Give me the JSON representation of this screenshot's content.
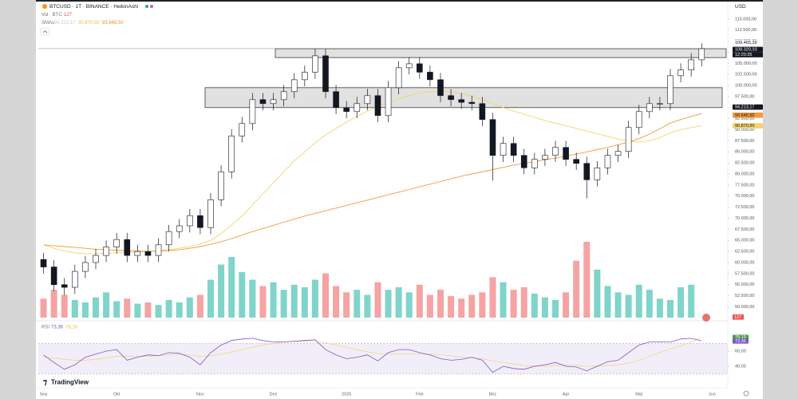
{
  "chart_data": {
    "type": "candlestick",
    "title": "BTCUSD · 1T · BINANCE · HeikinAshi",
    "currency": "USD",
    "volume_label": "Vol · BTC",
    "sma_label": "SMAs",
    "rsi_label": "RSI",
    "brand": "TradingView",
    "up_color": "#ffffff",
    "down_color": "#131722",
    "volume_up_color": "#80d4c9",
    "volume_down_color": "#f5a3a3",
    "categories": [
      "Sep",
      null,
      null,
      null,
      null,
      null,
      null,
      "Okt",
      null,
      null,
      null,
      null,
      null,
      null,
      null,
      "Nov",
      null,
      null,
      null,
      null,
      null,
      null,
      "Dez",
      null,
      null,
      null,
      null,
      null,
      null,
      "2025",
      null,
      null,
      null,
      null,
      null,
      null,
      "Feb",
      null,
      null,
      null,
      null,
      null,
      null,
      "Mrz",
      null,
      null,
      null,
      null,
      null,
      null,
      "Apr",
      null,
      null,
      null,
      null,
      null,
      null,
      "Mai",
      null,
      null,
      null,
      null,
      null,
      null,
      "Jun",
      null
    ],
    "open": [
      60700,
      59000,
      55000,
      54400,
      58000,
      60000,
      61600,
      63500,
      65200,
      61600,
      62500,
      61600,
      64000,
      67000,
      68300,
      70600,
      67900,
      74200,
      80500,
      88600,
      91400,
      96800,
      95900,
      96800,
      98600,
      101300,
      103000,
      106700,
      98600,
      95000,
      94100,
      95900,
      97700,
      93200,
      99500,
      104000,
      104900,
      103000,
      101300,
      97700,
      96800,
      96200,
      95900,
      92300,
      84200,
      86900,
      84200,
      81400,
      83300,
      84200,
      86000,
      83300,
      82400,
      78700,
      81400,
      84200,
      85100,
      90500,
      94100,
      95900,
      95900,
      102200,
      103500,
      105800,
      null,
      null
    ],
    "high": [
      62200,
      60500,
      56500,
      59500,
      61500,
      63100,
      65000,
      66700,
      66700,
      64000,
      64000,
      65500,
      68500,
      69800,
      72100,
      72100,
      75700,
      82000,
      90100,
      92900,
      98300,
      98300,
      98300,
      100100,
      102800,
      104500,
      108300,
      108200,
      100100,
      96500,
      97400,
      99200,
      99200,
      101000,
      105500,
      106400,
      106400,
      104500,
      102800,
      99200,
      98300,
      97700,
      97400,
      93800,
      88400,
      88400,
      85700,
      84800,
      85700,
      87500,
      87500,
      84800,
      83900,
      82900,
      85700,
      86600,
      92000,
      95600,
      97400,
      97400,
      103700,
      105000,
      107300,
      109500,
      null,
      null
    ],
    "low": [
      57500,
      53500,
      52600,
      52900,
      56500,
      58500,
      60100,
      62000,
      60100,
      60100,
      60100,
      60100,
      62500,
      65500,
      66800,
      66400,
      66400,
      72700,
      79000,
      87100,
      89900,
      94400,
      94400,
      95300,
      97100,
      99800,
      101500,
      97100,
      93500,
      92600,
      92600,
      94400,
      91700,
      91700,
      98000,
      102500,
      101500,
      99800,
      96200,
      95300,
      94700,
      94400,
      90800,
      78500,
      82700,
      82700,
      79900,
      79900,
      81800,
      82700,
      81800,
      80900,
      74500,
      77200,
      79900,
      82700,
      83600,
      89000,
      92600,
      94400,
      94400,
      100700,
      102000,
      104300,
      null,
      null
    ],
    "close": [
      59000,
      55000,
      54400,
      58000,
      60000,
      61600,
      63500,
      65200,
      61600,
      62500,
      61600,
      64000,
      67000,
      68300,
      70600,
      67900,
      74200,
      80500,
      88600,
      91400,
      96800,
      95900,
      96800,
      98600,
      101300,
      103000,
      106700,
      98600,
      95000,
      94100,
      95900,
      97700,
      93200,
      99500,
      104000,
      104900,
      103000,
      101300,
      97700,
      96800,
      96200,
      95900,
      92300,
      84200,
      86900,
      84200,
      81400,
      83300,
      84200,
      86000,
      83300,
      82400,
      78700,
      81400,
      84200,
      85100,
      90500,
      94100,
      95900,
      95900,
      102200,
      103500,
      105800,
      108300,
      null,
      null
    ],
    "volume": [
      15000,
      22000,
      18000,
      14000,
      12000,
      16000,
      20000,
      13000,
      15000,
      11000,
      12000,
      10000,
      14000,
      12000,
      16000,
      18000,
      30000,
      42000,
      48000,
      36000,
      30000,
      25000,
      28000,
      22000,
      26000,
      24000,
      30000,
      35000,
      25000,
      20000,
      22000,
      18000,
      28000,
      22000,
      24000,
      20000,
      26000,
      18000,
      22000,
      17000,
      15000,
      18000,
      20000,
      32000,
      28000,
      22000,
      24000,
      19000,
      16000,
      14000,
      20000,
      45000,
      60000,
      38000,
      25000,
      20000,
      18000,
      26000,
      22000,
      15000,
      14000,
      24000,
      26000,
      127,
      null,
      null
    ],
    "sma_fast": [
      64000,
      63200,
      62600,
      62200,
      62000,
      62000,
      62100,
      62200,
      62300,
      62400,
      62500,
      62700,
      62900,
      63200,
      63600,
      64200,
      65000,
      66500,
      68500,
      70500,
      73000,
      75500,
      78000,
      80500,
      83000,
      85000,
      87000,
      88800,
      90300,
      91700,
      93000,
      94200,
      95300,
      96200,
      97000,
      97700,
      98300,
      98600,
      98700,
      98600,
      98200,
      97600,
      96800,
      95900,
      95000,
      94200,
      93500,
      92800,
      92100,
      91500,
      90900,
      90300,
      89700,
      89100,
      88500,
      87900,
      87400,
      87200,
      87500,
      88200,
      89300,
      90000,
      90500,
      90870.5,
      null,
      null
    ],
    "sma_slow": [
      64000,
      63800,
      63600,
      63400,
      63200,
      63000,
      62900,
      62800,
      62700,
      62600,
      62500,
      62600,
      62700,
      62900,
      63200,
      63600,
      64100,
      64700,
      65400,
      66200,
      67000,
      67700,
      68400,
      69100,
      69800,
      70500,
      71100,
      71700,
      72300,
      72900,
      73500,
      74100,
      74700,
      75300,
      75900,
      76500,
      77100,
      77700,
      78300,
      78900,
      79500,
      80000,
      80500,
      81000,
      81500,
      82000,
      82400,
      82800,
      83200,
      83600,
      84000,
      84500,
      85000,
      85500,
      86000,
      86600,
      87200,
      88000,
      89000,
      90200,
      91500,
      92300,
      93000,
      93645.5,
      null,
      null
    ],
    "sma_fast_color": "#f3d36b",
    "sma_slow_color": "#f39a3c",
    "rsi": [
      55,
      45,
      36,
      42,
      52,
      56,
      60,
      62,
      48,
      52,
      55,
      54,
      58,
      57,
      52,
      42,
      58,
      68,
      74,
      76,
      77,
      74,
      72,
      72,
      73,
      74,
      75,
      62,
      55,
      50,
      52,
      55,
      47,
      58,
      62,
      62,
      58,
      55,
      50,
      48,
      49,
      52,
      48,
      32,
      40,
      37,
      36,
      40,
      42,
      45,
      40,
      39,
      34,
      40,
      46,
      48,
      58,
      68,
      72,
      72,
      72,
      76,
      77,
      73.36,
      null,
      null
    ],
    "rsi_ma": [
      52,
      51,
      49,
      48,
      48,
      49,
      51,
      53,
      53,
      53,
      53,
      54,
      55,
      56,
      55,
      53,
      54,
      56,
      59,
      62,
      65,
      68,
      70,
      72,
      73,
      73,
      73,
      71,
      68,
      65,
      62,
      59,
      57,
      56,
      56,
      56,
      56,
      56,
      55,
      54,
      52,
      51,
      50,
      47,
      45,
      43,
      41,
      40,
      40,
      41,
      42,
      41,
      40,
      40,
      41,
      42,
      44,
      48,
      53,
      58,
      63,
      67,
      72,
      78.19,
      null,
      null
    ],
    "rsi_color": "#7e57c2",
    "rsi_ma_color": "#f3d36b",
    "rsi_bands": [
      30,
      70
    ],
    "rsi_ylim": [
      21,
      99
    ],
    "rsi_ticks": [
      {
        "value": 60,
        "label": "60,00"
      },
      {
        "value": 40,
        "label": "40,00"
      }
    ],
    "rsi_last_labels": [
      {
        "value": 73.36,
        "label": "73,36"
      },
      {
        "value": 78.19,
        "label": "78,19"
      }
    ],
    "ylim": [
      47200,
      118400
    ],
    "yticks": [
      {
        "value": 115000,
        "label": "115.000,00"
      },
      {
        "value": 112500,
        "label": "112.500,00"
      },
      {
        "value": 110000,
        "label": "110.000,00"
      },
      {
        "value": 107500,
        "label": "107.500,00"
      },
      {
        "value": 105000,
        "label": "105.000,00"
      },
      {
        "value": 102500,
        "label": "102.500,00"
      },
      {
        "value": 100000,
        "label": "100.000,00"
      },
      {
        "value": 97500,
        "label": "97.500,00"
      },
      {
        "value": 95000,
        "label": "95.000,00"
      },
      {
        "value": 92500,
        "label": "92.500,00"
      },
      {
        "value": 90000,
        "label": "90.000,00"
      },
      {
        "value": 87500,
        "label": "87.500,00"
      },
      {
        "value": 85000,
        "label": "85.000,00"
      },
      {
        "value": 82500,
        "label": "82.500,00"
      },
      {
        "value": 80000,
        "label": "80.000,00"
      },
      {
        "value": 77500,
        "label": "77.500,00"
      },
      {
        "value": 75000,
        "label": "75.000,00"
      },
      {
        "value": 72500,
        "label": "72.500,00"
      },
      {
        "value": 70000,
        "label": "70.000,00"
      },
      {
        "value": 67500,
        "label": "67.500,00"
      },
      {
        "value": 65000,
        "label": "65.000,00"
      },
      {
        "value": 62500,
        "label": "62.500,00"
      },
      {
        "value": 60000,
        "label": "60.000,00"
      },
      {
        "value": 57500,
        "label": "57.500,00"
      },
      {
        "value": 55000,
        "label": "55.000,00"
      },
      {
        "value": 52500,
        "label": "52.500,00"
      },
      {
        "value": 50000,
        "label": "50.000,00"
      }
    ],
    "price_labels": [
      {
        "value": 109465.39,
        "label": "109.465,39"
      },
      {
        "value": 108320.1,
        "label": "108.320,10"
      }
    ],
    "countdown": "12:20:35",
    "sma_labels": [
      {
        "value": 94213.17,
        "label": "94.213,17"
      },
      {
        "value": 93645.5,
        "label": "93.645,50"
      },
      {
        "value": 90870.5,
        "label": "90.870,50"
      }
    ],
    "zones": [
      {
        "top": 108300,
        "bottom": 106300
      },
      {
        "top": 99500,
        "bottom": 95000
      }
    ]
  }
}
